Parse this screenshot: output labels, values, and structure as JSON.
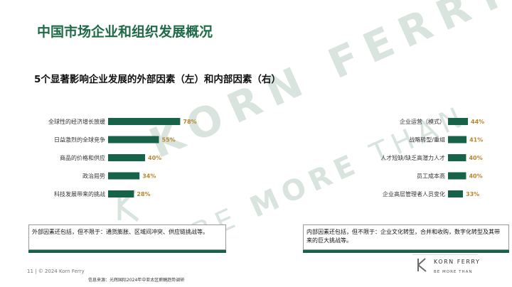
{
  "slide": {
    "title": "中国市场企业和组织发展概况",
    "subtitle": "5个显著影响企业发展的外部因素（左）和内部因素（右）"
  },
  "watermark": {
    "logo_text": "KORN FERRY",
    "tagline_prefix": "BE ",
    "tagline_bold": "MORE",
    "tagline_suffix": " THAN"
  },
  "chart_data": [
    {
      "type": "bar",
      "orientation": "horizontal",
      "categories": [
        "全球性的经济增长放缓",
        "日益激烈的全球竞争",
        "商品的价格和供应",
        "政治局势",
        "科技发展带来的挑战"
      ],
      "values": [
        78,
        55,
        40,
        34,
        28
      ],
      "value_labels": [
        "78%",
        "55%",
        "40%",
        "34%",
        "28%"
      ],
      "unit": "%",
      "colors": {
        "bar": "#16634a",
        "value_label": "#b8862e"
      }
    },
    {
      "type": "bar",
      "orientation": "horizontal",
      "categories": [
        "企业运营（模式）",
        "战略转型/重组",
        "人才短缺/缺乏高潜力人才",
        "员工成本高",
        "企业高层管理者人员变化"
      ],
      "values": [
        44,
        41,
        40,
        40,
        33
      ],
      "value_labels": [
        "44%",
        "41%",
        "40%",
        "40%",
        "33%"
      ],
      "unit": "%",
      "colors": {
        "bar": "#16634a",
        "value_label": "#b8862e"
      }
    }
  ],
  "notes": {
    "left": "外部因素还包括，但不限于：通货膨胀、区域间冲突、供应链挑战等。",
    "right": "内部因素还包括，但不限于：企业文化转型，合并和收购，数字化转型及其带来的巨大挑战等。"
  },
  "footer": {
    "page_info": "11  |  © 2024 Korn Ferry",
    "source": "信息来源：光辉国际2024年中亚太区薪酬趋势调研",
    "brand_name": "KORN FERRY",
    "brand_tagline": "BE MORE THAN"
  }
}
